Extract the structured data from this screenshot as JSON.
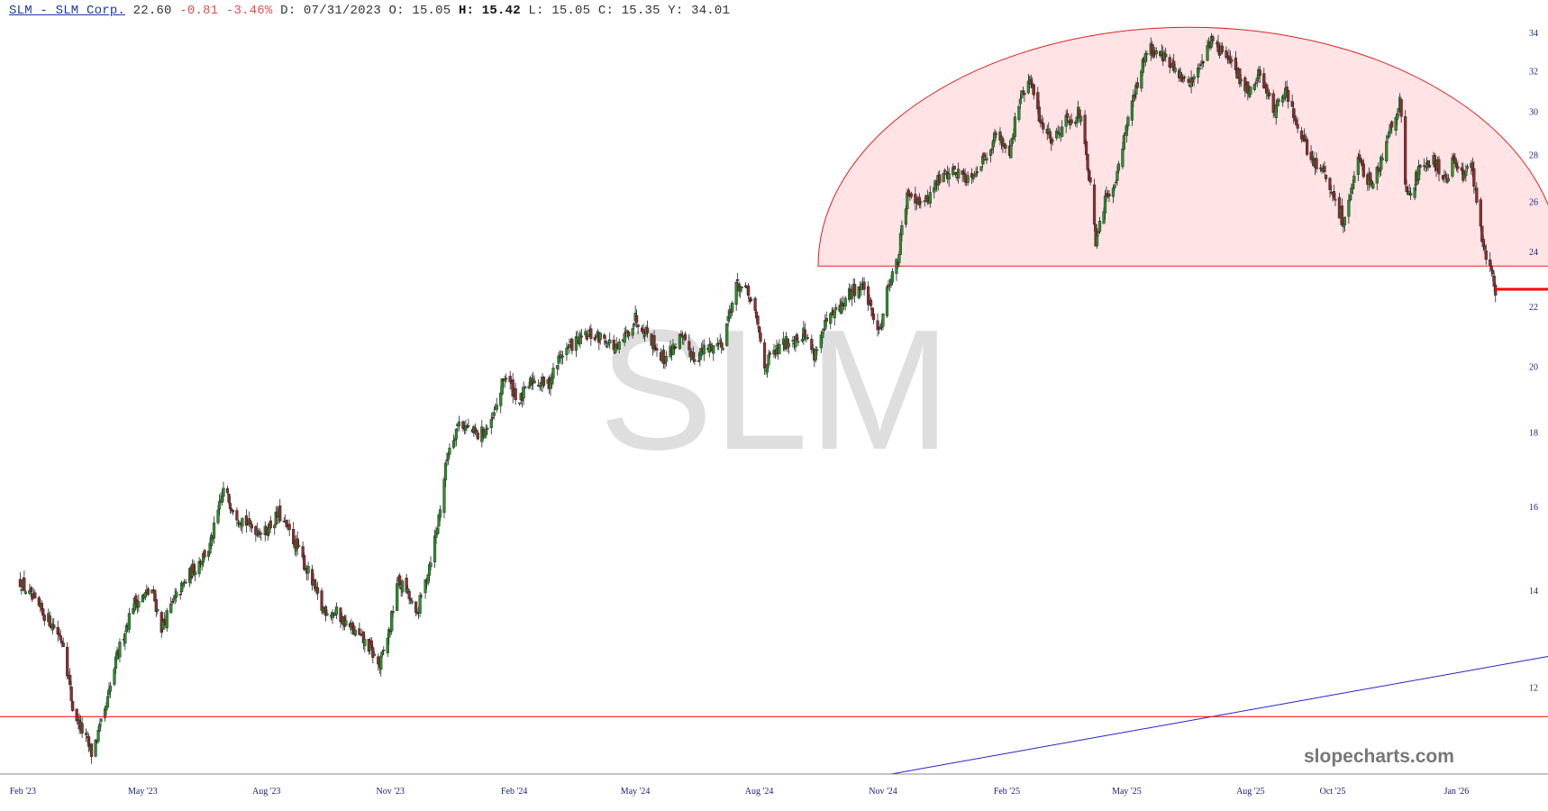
{
  "header": {
    "symbol_link": "SLM - SLM Corp.",
    "last": "22.60",
    "change": "-0.81",
    "change_pct": "-3.46%",
    "date_label": "D:",
    "date": "07/31/2023",
    "open_label": "O:",
    "open": "15.05",
    "high_label": "H:",
    "high": "15.42",
    "low_label": "L:",
    "low": "15.05",
    "close_label": "C:",
    "close": "15.35",
    "ytd_label": "Y:",
    "ytd": "34.01"
  },
  "watermark": "SLM",
  "brand": "slopecharts.com",
  "colors": {
    "up_candle": "#2e8b2e",
    "down_candle": "#8b2e2e",
    "wick": "#222222",
    "support_line": "#ff0000",
    "trend_line": "#2222cc",
    "dome_fill": "#ffe3e5",
    "dome_stroke": "#e02020",
    "axis_text": "#1a237e"
  },
  "chart_data": {
    "type": "candlestick",
    "x_type": "date",
    "y_ticks": [
      12,
      14,
      16,
      18,
      20,
      22,
      24,
      26,
      28,
      30,
      32,
      34
    ],
    "y_scale": "log",
    "ylim": [
      10.45,
      34.4
    ],
    "xlim": [
      "2023-01-15",
      "2026-03-10"
    ],
    "x_ticks": [
      {
        "date": "2023-02-01",
        "label": "Feb '23"
      },
      {
        "date": "2023-05-01",
        "label": "May '23"
      },
      {
        "date": "2023-08-01",
        "label": "Aug '23"
      },
      {
        "date": "2023-11-01",
        "label": "Nov '23"
      },
      {
        "date": "2024-02-01",
        "label": "Feb '24"
      },
      {
        "date": "2024-05-01",
        "label": "May '24"
      },
      {
        "date": "2024-08-01",
        "label": "Aug '24"
      },
      {
        "date": "2024-11-01",
        "label": "Nov '24"
      },
      {
        "date": "2025-02-01",
        "label": "Feb '25"
      },
      {
        "date": "2025-05-01",
        "label": "May '25"
      },
      {
        "date": "2025-08-01",
        "label": "Aug '25"
      },
      {
        "date": "2025-10-01",
        "label": "Oct '25"
      },
      {
        "date": "2026-01-01",
        "label": "Jan '26"
      }
    ],
    "close_path": [
      [
        "2023-01-30",
        14.2
      ],
      [
        "2023-02-10",
        13.7
      ],
      [
        "2023-02-22",
        13.3
      ],
      [
        "2023-03-03",
        12.9
      ],
      [
        "2023-03-10",
        11.6
      ],
      [
        "2023-03-17",
        11.2
      ],
      [
        "2023-03-24",
        10.8
      ],
      [
        "2023-04-03",
        11.5
      ],
      [
        "2023-04-12",
        12.6
      ],
      [
        "2023-04-24",
        13.7
      ],
      [
        "2023-05-08",
        14.0
      ],
      [
        "2023-05-15",
        13.2
      ],
      [
        "2023-05-25",
        13.8
      ],
      [
        "2023-06-08",
        14.5
      ],
      [
        "2023-06-20",
        15.0
      ],
      [
        "2023-06-30",
        16.4
      ],
      [
        "2023-07-10",
        15.8
      ],
      [
        "2023-07-20",
        15.5
      ],
      [
        "2023-07-31",
        15.35
      ],
      [
        "2023-08-10",
        15.8
      ],
      [
        "2023-08-22",
        15.1
      ],
      [
        "2023-09-01",
        14.4
      ],
      [
        "2023-09-11",
        13.6
      ],
      [
        "2023-09-22",
        13.5
      ],
      [
        "2023-10-05",
        13.1
      ],
      [
        "2023-10-16",
        12.8
      ],
      [
        "2023-10-24",
        12.4
      ],
      [
        "2023-11-01",
        13.2
      ],
      [
        "2023-11-06",
        14.2
      ],
      [
        "2023-11-13",
        14.0
      ],
      [
        "2023-11-20",
        13.4
      ],
      [
        "2023-11-28",
        14.3
      ],
      [
        "2023-12-06",
        15.5
      ],
      [
        "2023-12-14",
        17.5
      ],
      [
        "2023-12-22",
        18.3
      ],
      [
        "2024-01-05",
        17.9
      ],
      [
        "2024-01-15",
        18.2
      ],
      [
        "2024-01-25",
        19.7
      ],
      [
        "2024-02-05",
        18.9
      ],
      [
        "2024-02-15",
        19.6
      ],
      [
        "2024-02-26",
        19.4
      ],
      [
        "2024-03-07",
        20.4
      ],
      [
        "2024-03-18",
        20.8
      ],
      [
        "2024-03-28",
        21.0
      ],
      [
        "2024-04-08",
        20.9
      ],
      [
        "2024-04-18",
        20.5
      ],
      [
        "2024-05-01",
        21.6
      ],
      [
        "2024-05-10",
        21.1
      ],
      [
        "2024-05-22",
        20.2
      ],
      [
        "2024-06-03",
        20.9
      ],
      [
        "2024-06-14",
        20.3
      ],
      [
        "2024-06-25",
        20.6
      ],
      [
        "2024-07-05",
        20.8
      ],
      [
        "2024-07-11",
        22.0
      ],
      [
        "2024-07-16",
        22.8
      ],
      [
        "2024-07-25",
        22.3
      ],
      [
        "2024-07-31",
        21.3
      ],
      [
        "2024-08-05",
        20.0
      ],
      [
        "2024-08-12",
        20.4
      ],
      [
        "2024-08-22",
        20.8
      ],
      [
        "2024-09-03",
        21.1
      ],
      [
        "2024-09-11",
        20.4
      ],
      [
        "2024-09-20",
        21.4
      ],
      [
        "2024-10-01",
        22.0
      ],
      [
        "2024-10-10",
        22.6
      ],
      [
        "2024-10-18",
        22.7
      ],
      [
        "2024-10-24",
        21.6
      ],
      [
        "2024-10-30",
        21.3
      ],
      [
        "2024-11-06",
        23.0
      ],
      [
        "2024-11-12",
        23.6
      ],
      [
        "2024-11-15",
        24.9
      ],
      [
        "2024-11-20",
        26.4
      ],
      [
        "2024-12-02",
        25.9
      ],
      [
        "2024-12-12",
        26.9
      ],
      [
        "2024-12-22",
        27.3
      ],
      [
        "2025-01-03",
        27.0
      ],
      [
        "2025-01-13",
        27.6
      ],
      [
        "2025-01-24",
        28.9
      ],
      [
        "2025-02-03",
        28.2
      ],
      [
        "2025-02-10",
        30.4
      ],
      [
        "2025-02-18",
        31.5
      ],
      [
        "2025-02-26",
        29.5
      ],
      [
        "2025-03-07",
        28.7
      ],
      [
        "2025-03-17",
        29.6
      ],
      [
        "2025-03-27",
        29.9
      ],
      [
        "2025-04-04",
        26.6
      ],
      [
        "2025-04-08",
        24.2
      ],
      [
        "2025-04-14",
        25.8
      ],
      [
        "2025-04-24",
        27.2
      ],
      [
        "2025-05-02",
        29.8
      ],
      [
        "2025-05-09",
        31.2
      ],
      [
        "2025-05-16",
        33.2
      ],
      [
        "2025-05-27",
        32.9
      ],
      [
        "2025-06-05",
        32.0
      ],
      [
        "2025-06-16",
        31.2
      ],
      [
        "2025-06-26",
        32.6
      ],
      [
        "2025-07-03",
        33.6
      ],
      [
        "2025-07-14",
        32.7
      ],
      [
        "2025-07-24",
        31.6
      ],
      [
        "2025-08-01",
        30.9
      ],
      [
        "2025-08-08",
        32.0
      ],
      [
        "2025-08-18",
        30.0
      ],
      [
        "2025-08-28",
        31.0
      ],
      [
        "2025-09-05",
        29.0
      ],
      [
        "2025-09-15",
        27.9
      ],
      [
        "2025-09-25",
        27.1
      ],
      [
        "2025-10-02",
        26.0
      ],
      [
        "2025-10-09",
        25.2
      ],
      [
        "2025-10-20",
        27.6
      ],
      [
        "2025-10-29",
        26.8
      ],
      [
        "2025-11-06",
        27.7
      ],
      [
        "2025-11-12",
        29.2
      ],
      [
        "2025-11-20",
        30.4
      ],
      [
        "2025-11-24",
        26.7
      ],
      [
        "2025-11-28",
        26.2
      ],
      [
        "2025-12-05",
        27.5
      ],
      [
        "2025-12-15",
        27.8
      ],
      [
        "2025-12-24",
        26.8
      ],
      [
        "2025-12-31",
        27.9
      ],
      [
        "2026-01-06",
        27.0
      ],
      [
        "2026-01-12",
        27.4
      ],
      [
        "2026-01-16",
        26.2
      ],
      [
        "2026-01-21",
        24.0
      ],
      [
        "2026-01-26",
        23.4
      ],
      [
        "2026-01-30",
        22.6
      ]
    ],
    "support_lines": [
      11.45,
      23.45
    ],
    "breakdown_level": 22.6,
    "dome_base": 23.45,
    "trendline": [
      [
        "2024-11-07",
        10.45
      ],
      [
        "2026-03-10",
        12.6
      ]
    ]
  }
}
